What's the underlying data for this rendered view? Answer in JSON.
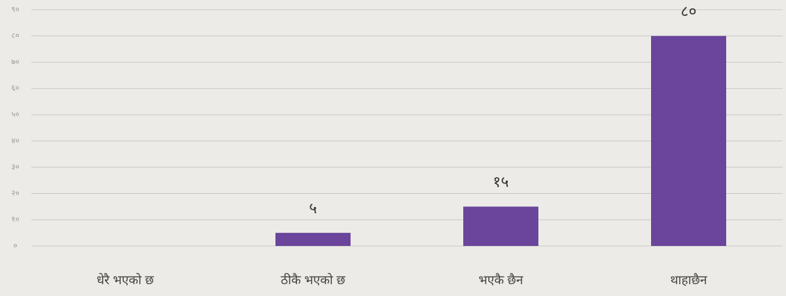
{
  "chart_data": {
    "type": "bar",
    "categories": [
      "धेरै भएको छ",
      "ठीकै भएको छ",
      "भएकै छैन",
      "थाहाछैन"
    ],
    "values": [
      0,
      5,
      15,
      80
    ],
    "value_labels": [
      null,
      "५",
      "१५",
      "८०"
    ],
    "color": "#6a459b",
    "ylim": [
      0,
      90
    ],
    "yticks": [
      {
        "value": 0,
        "label": "०"
      },
      {
        "value": 10,
        "label": "१०"
      },
      {
        "value": 20,
        "label": "२०"
      },
      {
        "value": 30,
        "label": "३०"
      },
      {
        "value": 40,
        "label": "४०"
      },
      {
        "value": 50,
        "label": "५०"
      },
      {
        "value": 60,
        "label": "६०"
      },
      {
        "value": 70,
        "label": "७०"
      },
      {
        "value": 80,
        "label": "८०"
      },
      {
        "value": 90,
        "label": "९०"
      }
    ],
    "grid": true
  }
}
